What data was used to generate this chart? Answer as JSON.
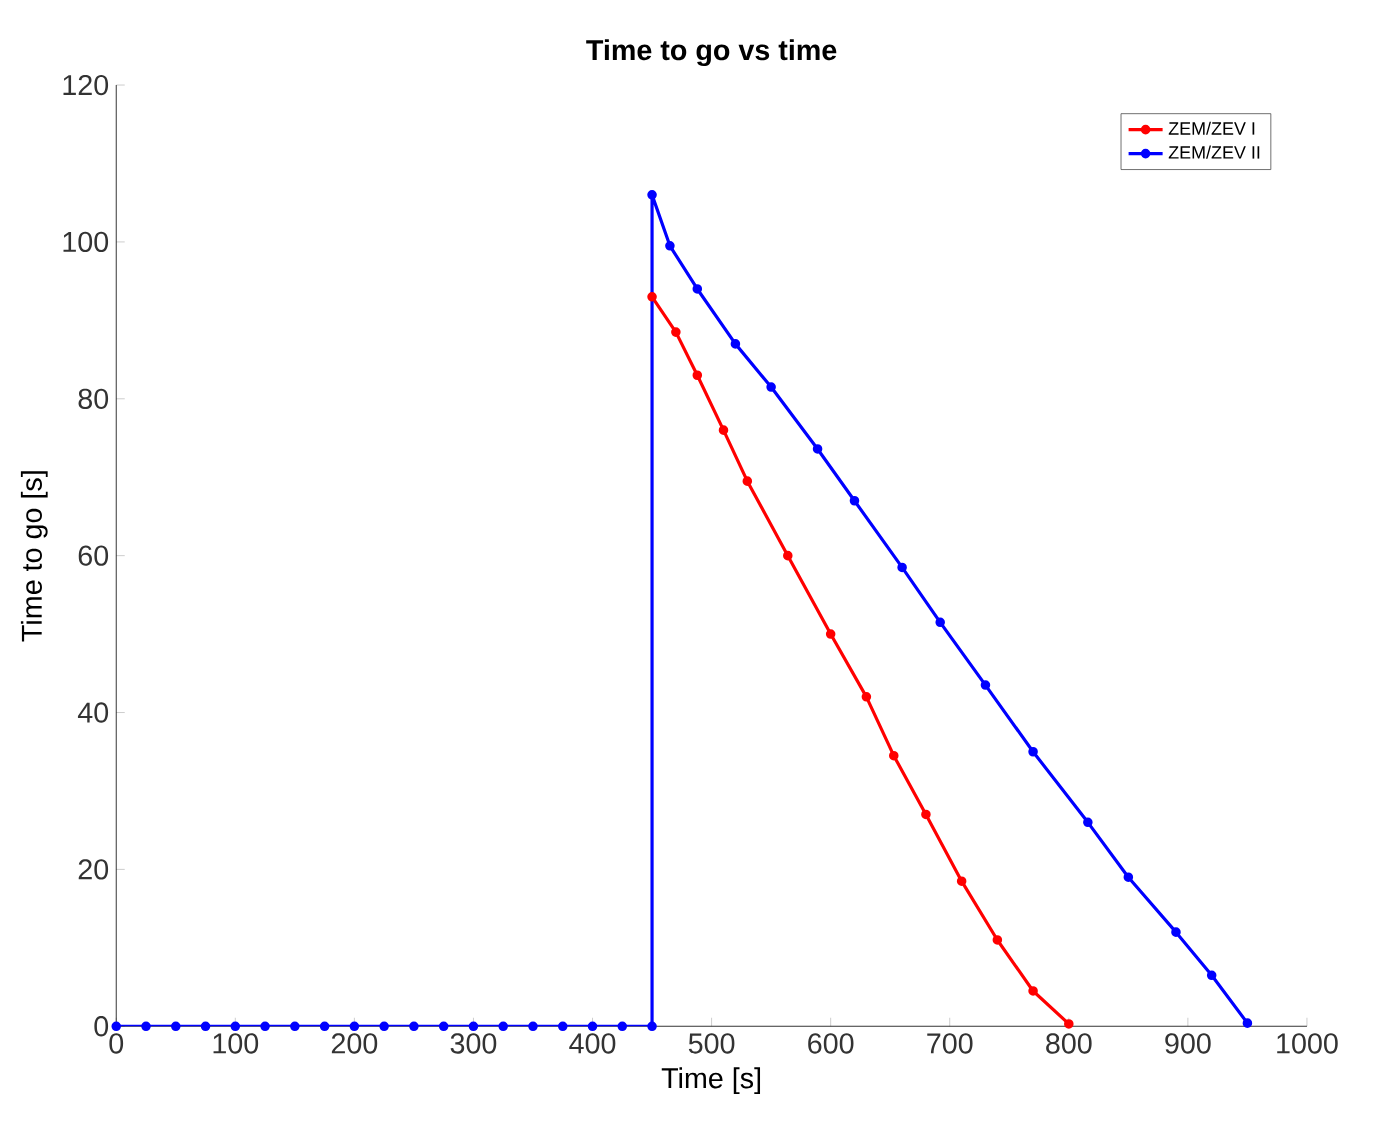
{
  "chart_data": {
    "type": "line",
    "title": "Time to go vs time",
    "xlabel": "Time [s]",
    "ylabel": "Time to go [s]",
    "xlim": [
      0,
      1000
    ],
    "ylim": [
      0,
      120
    ],
    "xticks": [
      0,
      100,
      200,
      300,
      400,
      500,
      600,
      700,
      800,
      900,
      1000
    ],
    "yticks": [
      0,
      20,
      40,
      60,
      80,
      100,
      120
    ],
    "grid": false,
    "legend": "top right",
    "marker": "circle",
    "line_style": "solid",
    "series": [
      {
        "name": "ZEM/ZEV I",
        "color": "#ff0000",
        "x": [
          450,
          470,
          488,
          510,
          530,
          564,
          600,
          630,
          653,
          680,
          710,
          740,
          770,
          800
        ],
        "values": [
          93,
          88.5,
          83,
          76,
          69.5,
          60,
          50,
          42,
          34.5,
          27,
          18.5,
          11,
          4.5,
          0.3
        ]
      },
      {
        "name": "ZEM/ZEV II",
        "color": "#0000ff",
        "x": [
          0,
          25,
          50,
          75,
          100,
          125,
          150,
          175,
          200,
          225,
          250,
          275,
          300,
          325,
          350,
          375,
          400,
          425,
          450,
          450,
          465,
          488,
          520,
          550,
          589,
          620,
          660,
          692,
          730,
          770,
          816,
          850,
          890,
          920,
          950
        ],
        "values": [
          0,
          0,
          0,
          0,
          0,
          0,
          0,
          0,
          0,
          0,
          0,
          0,
          0,
          0,
          0,
          0,
          0,
          0,
          0,
          106,
          99.5,
          94,
          87,
          81.5,
          73.6,
          67,
          58.5,
          51.5,
          43.5,
          35,
          26,
          19,
          12,
          6.5,
          0.4
        ]
      }
    ]
  }
}
